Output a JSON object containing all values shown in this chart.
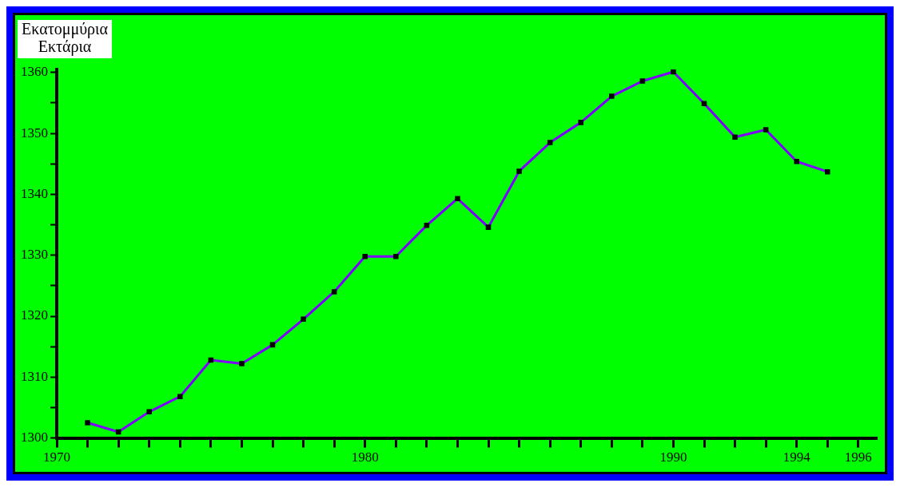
{
  "chart_data": {
    "type": "line",
    "ylabel": "Εκατομμύρια Εκτάρια",
    "x": [
      1971,
      1972,
      1973,
      1974,
      1975,
      1976,
      1977,
      1978,
      1979,
      1980,
      1981,
      1982,
      1983,
      1984,
      1985,
      1986,
      1987,
      1988,
      1989,
      1990,
      1991,
      1992,
      1993,
      1994,
      1995
    ],
    "series": [
      {
        "color": "#8000ff",
        "values": [
          1302.5,
          1301,
          1304.3,
          1306.8,
          1312.8,
          1312.2,
          1315.3,
          1319.5,
          1324,
          1329.8,
          1329.8,
          1334.9,
          1339.3,
          1334.6,
          1343.8,
          1348.5,
          1351.8,
          1356.1,
          1358.6,
          1360.1,
          1354.9,
          1349.4,
          1350.6,
          1345.4,
          1343.7
        ]
      }
    ],
    "xlim": [
      1970,
      1996.6
    ],
    "xticks": [
      1970,
      {
        "value": 1971,
        "label": null
      },
      {
        "value": 1972,
        "label": null
      },
      {
        "value": 1973,
        "label": null
      },
      {
        "value": 1974,
        "label": null
      },
      {
        "value": 1975,
        "label": null
      },
      {
        "value": 1976,
        "label": null
      },
      {
        "value": 1977,
        "label": null
      },
      {
        "value": 1978,
        "label": null
      },
      {
        "value": 1979,
        "label": null
      },
      1980,
      {
        "value": 1981,
        "label": null
      },
      {
        "value": 1982,
        "label": null
      },
      {
        "value": 1983,
        "label": null
      },
      {
        "value": 1984,
        "label": null
      },
      {
        "value": 1985,
        "label": null
      },
      {
        "value": 1986,
        "label": null
      },
      {
        "value": 1987,
        "label": null
      },
      {
        "value": 1988,
        "label": null
      },
      {
        "value": 1989,
        "label": null
      },
      1990,
      {
        "value": 1991,
        "label": null
      },
      {
        "value": 1992,
        "label": null
      },
      {
        "value": 1993,
        "label": null
      },
      1994,
      {
        "value": 1995,
        "label": null
      },
      1996
    ],
    "ylim": [
      1300,
      1360.5
    ],
    "yticks": [
      1300,
      {
        "value": 1305,
        "label": null
      },
      1310,
      {
        "value": 1315,
        "label": null
      },
      1320,
      {
        "value": 1325,
        "label": null
      },
      1330,
      {
        "value": 1335,
        "label": null
      },
      1340,
      {
        "value": 1345,
        "label": null
      },
      1350,
      {
        "value": 1355,
        "label": null
      },
      1360
    ],
    "grid": false,
    "legend": false,
    "marker": "square",
    "line_style": "solid"
  }
}
